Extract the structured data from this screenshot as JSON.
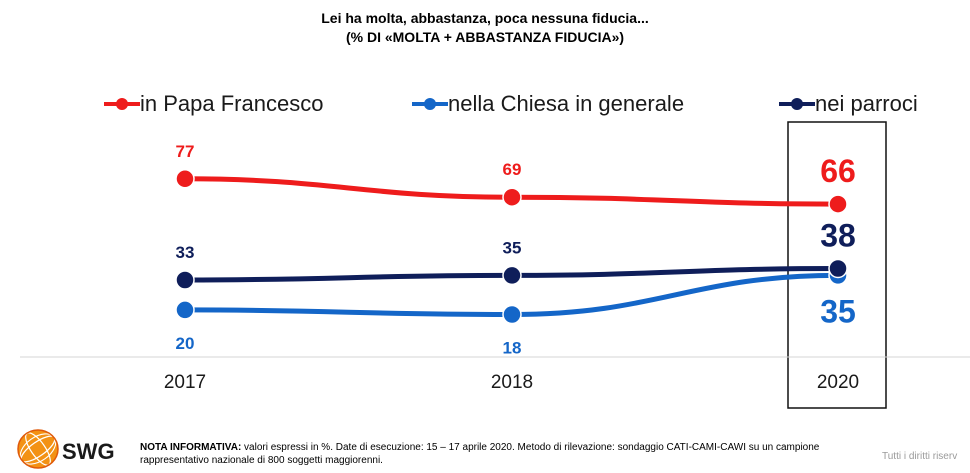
{
  "header": {
    "title_line1": "Lei ha molta, abbastanza, poca nessuna fiducia...",
    "title_line2": "(% DI «MOLTA + ABBASTANZA FIDUCIA»)"
  },
  "chart_data": {
    "type": "line",
    "x": [
      "2017",
      "2018",
      "2020"
    ],
    "series": [
      {
        "name": "in Papa Francesco",
        "values": [
          77,
          69,
          66
        ],
        "color": "#ee1c1c"
      },
      {
        "name": "nella Chiesa in generale",
        "values": [
          20,
          18,
          35
        ],
        "color": "#1466c8"
      },
      {
        "name": "nei parroci",
        "values": [
          33,
          35,
          38
        ],
        "color": "#0f1e5a"
      }
    ],
    "legend_position": "top",
    "highlighted_category": "2020",
    "ylim": [
      0,
      100
    ]
  },
  "footer": {
    "brand": "SWG",
    "note_label": "NOTA INFORMATIVA:",
    "note_text": " valori espressi in %. Date di esecuzione: 15 – 17 aprile 2020. Metodo di rilevazione: sondaggio CATI-CAMI-CAWI su un campione rappresentativo nazionale di 800 soggetti maggiorenni.",
    "rights": "Tutti i diritti riserv"
  }
}
